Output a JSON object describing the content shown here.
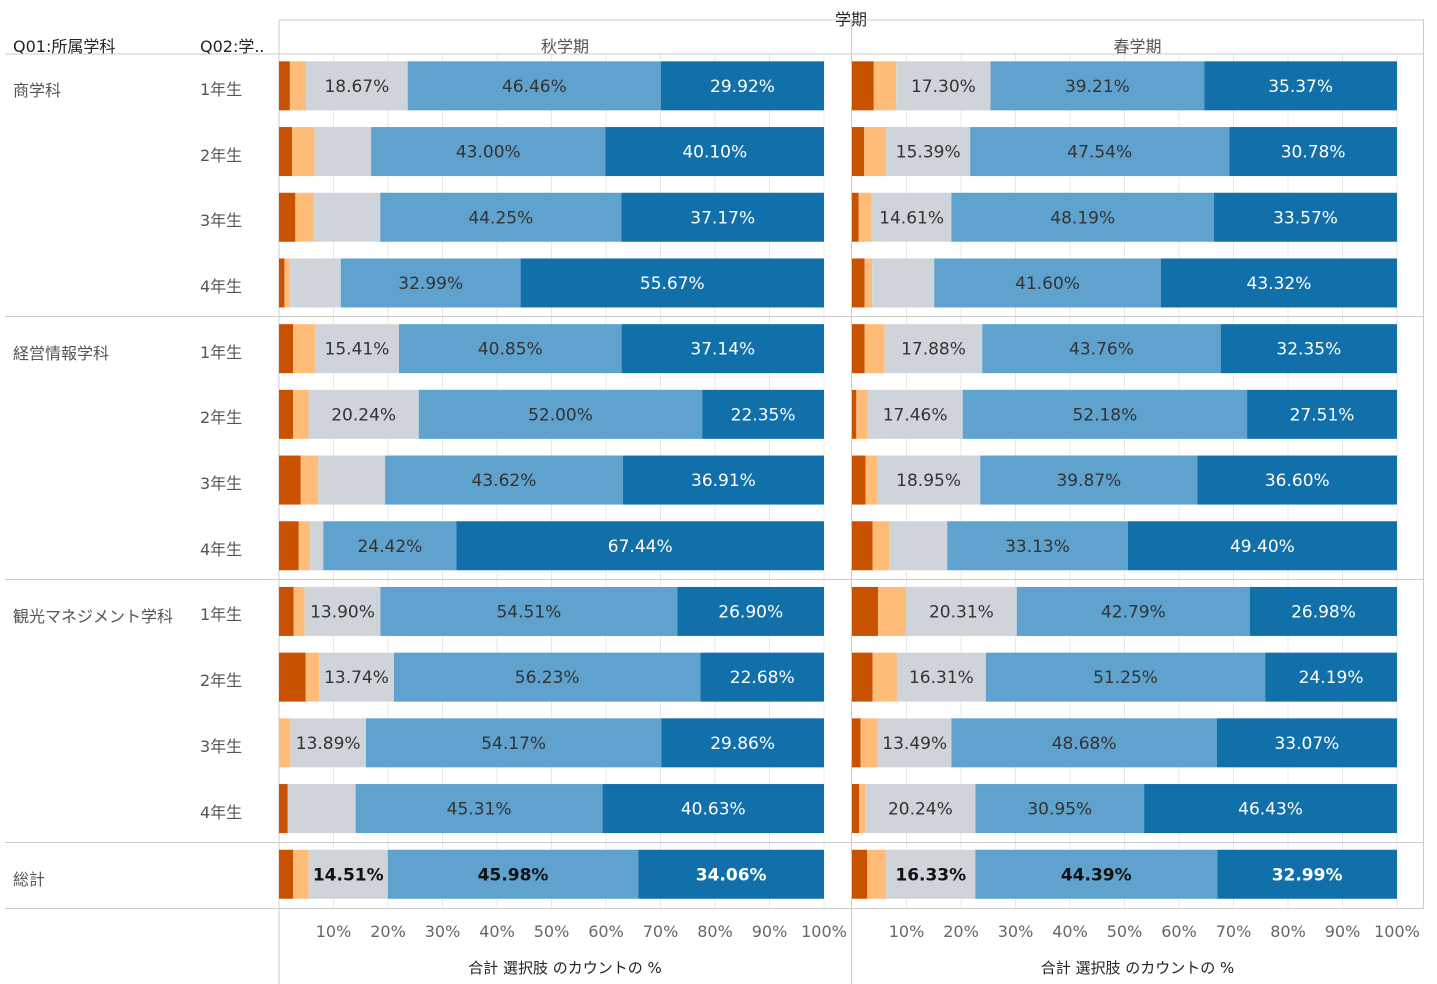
{
  "header": {
    "top_title": "学期",
    "col1": "Q01:所属学科",
    "col2": "Q02:学..",
    "panels": [
      "秋学期",
      "春学期"
    ]
  },
  "colors": {
    "s1": "#c85200",
    "s2": "#ffbc79",
    "s3": "#cfd4da",
    "s4": "#5fa2ce",
    "s5": "#1170aa",
    "grid": "#e8e8e8",
    "divider": "#cccccc"
  },
  "chart_data": {
    "type": "bar",
    "orientation": "horizontal",
    "stacked": true,
    "xlim": [
      0,
      100
    ],
    "tick_labels": [
      "10%",
      "20%",
      "30%",
      "40%",
      "50%",
      "60%",
      "70%",
      "80%",
      "90%",
      "100%"
    ],
    "xlabel": "合計 選択肢 のカウントの %",
    "groups": [
      "商学科",
      "経営情報学科",
      "観光マネジメント学科",
      "総計"
    ],
    "rows": [
      {
        "group": "商学科",
        "year": "1年生",
        "autumn": [
          2.0,
          2.95,
          18.67,
          46.46,
          29.92
        ],
        "spring": [
          4.0,
          4.12,
          17.3,
          39.21,
          35.37
        ]
      },
      {
        "group": "商学科",
        "year": "2年生",
        "autumn": [
          2.4,
          4.1,
          10.4,
          43.0,
          40.1
        ],
        "spring": [
          2.2,
          4.09,
          15.39,
          47.54,
          30.78
        ]
      },
      {
        "group": "商学科",
        "year": "3年生",
        "autumn": [
          3.0,
          3.4,
          12.18,
          44.25,
          37.17
        ],
        "spring": [
          1.2,
          2.43,
          14.61,
          48.19,
          33.57
        ]
      },
      {
        "group": "商学科",
        "year": "4年生",
        "autumn": [
          1.0,
          1.0,
          9.34,
          32.99,
          55.67
        ],
        "spring": [
          2.3,
          1.4,
          11.38,
          41.6,
          43.32
        ]
      },
      {
        "group": "経営情報学科",
        "year": "1年生",
        "autumn": [
          2.6,
          4.0,
          15.41,
          40.85,
          37.14
        ],
        "spring": [
          2.3,
          3.71,
          17.88,
          43.76,
          32.35
        ]
      },
      {
        "group": "経営情報学科",
        "year": "2年生",
        "autumn": [
          2.6,
          2.81,
          20.24,
          52.0,
          22.35
        ],
        "spring": [
          0.8,
          2.05,
          17.46,
          52.18,
          27.51
        ]
      },
      {
        "group": "経営情報学科",
        "year": "3年生",
        "autumn": [
          4.0,
          3.2,
          12.27,
          43.62,
          36.91
        ],
        "spring": [
          2.5,
          2.08,
          18.95,
          39.87,
          36.6
        ]
      },
      {
        "group": "経営情報学科",
        "year": "4年生",
        "autumn": [
          3.6,
          2.1,
          2.44,
          24.42,
          67.44
        ],
        "spring": [
          3.8,
          3.0,
          10.67,
          33.13,
          49.4
        ]
      },
      {
        "group": "観光マネジメント学科",
        "year": "1年生",
        "autumn": [
          2.7,
          2.0,
          13.9,
          54.51,
          26.9
        ],
        "spring": [
          4.8,
          5.12,
          20.31,
          42.79,
          26.98
        ]
      },
      {
        "group": "観光マネジメント学科",
        "year": "2年生",
        "autumn": [
          4.9,
          2.45,
          13.74,
          56.23,
          22.68
        ],
        "spring": [
          3.8,
          4.45,
          16.31,
          51.25,
          24.19
        ]
      },
      {
        "group": "観光マネジメント学科",
        "year": "3年生",
        "autumn": [
          0.0,
          2.08,
          13.89,
          54.17,
          29.86
        ],
        "spring": [
          1.6,
          3.16,
          13.49,
          48.68,
          33.07
        ]
      },
      {
        "group": "観光マネジメント学科",
        "year": "4年生",
        "autumn": [
          1.6,
          0.0,
          12.46,
          45.31,
          40.63
        ],
        "spring": [
          1.3,
          1.13,
          20.24,
          30.95,
          46.43
        ]
      },
      {
        "group": "総計",
        "year": "",
        "autumn": [
          2.6,
          2.85,
          14.51,
          45.98,
          34.06
        ],
        "spring": [
          2.8,
          3.49,
          16.33,
          44.39,
          32.99
        ]
      }
    ],
    "labels": [
      {
        "autumn": [
          null,
          null,
          "18.67%",
          "46.46%",
          "29.92%"
        ],
        "spring": [
          null,
          null,
          "17.30%",
          "39.21%",
          "35.37%"
        ]
      },
      {
        "autumn": [
          null,
          null,
          null,
          "43.00%",
          "40.10%"
        ],
        "spring": [
          null,
          null,
          "15.39%",
          "47.54%",
          "30.78%"
        ]
      },
      {
        "autumn": [
          null,
          null,
          null,
          "44.25%",
          "37.17%"
        ],
        "spring": [
          null,
          null,
          "14.61%",
          "48.19%",
          "33.57%"
        ]
      },
      {
        "autumn": [
          null,
          null,
          null,
          "32.99%",
          "55.67%"
        ],
        "spring": [
          null,
          null,
          null,
          "41.60%",
          "43.32%"
        ]
      },
      {
        "autumn": [
          null,
          null,
          "15.41%",
          "40.85%",
          "37.14%"
        ],
        "spring": [
          null,
          null,
          "17.88%",
          "43.76%",
          "32.35%"
        ]
      },
      {
        "autumn": [
          null,
          null,
          "20.24%",
          "52.00%",
          "22.35%"
        ],
        "spring": [
          null,
          null,
          "17.46%",
          "52.18%",
          "27.51%"
        ]
      },
      {
        "autumn": [
          null,
          null,
          null,
          "43.62%",
          "36.91%"
        ],
        "spring": [
          null,
          null,
          "18.95%",
          "39.87%",
          "36.60%"
        ]
      },
      {
        "autumn": [
          null,
          null,
          null,
          "24.42%",
          "67.44%"
        ],
        "spring": [
          null,
          null,
          null,
          "33.13%",
          "49.40%"
        ]
      },
      {
        "autumn": [
          null,
          null,
          "13.90%",
          "54.51%",
          "26.90%"
        ],
        "spring": [
          null,
          null,
          "20.31%",
          "42.79%",
          "26.98%"
        ]
      },
      {
        "autumn": [
          null,
          null,
          "13.74%",
          "56.23%",
          "22.68%"
        ],
        "spring": [
          null,
          null,
          "16.31%",
          "51.25%",
          "24.19%"
        ]
      },
      {
        "autumn": [
          null,
          null,
          "13.89%",
          "54.17%",
          "29.86%"
        ],
        "spring": [
          null,
          null,
          "13.49%",
          "48.68%",
          "33.07%"
        ]
      },
      {
        "autumn": [
          null,
          null,
          null,
          "45.31%",
          "40.63%"
        ],
        "spring": [
          null,
          null,
          "20.24%",
          "30.95%",
          "46.43%"
        ]
      },
      {
        "autumn": [
          null,
          null,
          "14.51%",
          "45.98%",
          "34.06%"
        ],
        "spring": [
          null,
          null,
          "16.33%",
          "44.39%",
          "32.99%"
        ]
      }
    ]
  }
}
